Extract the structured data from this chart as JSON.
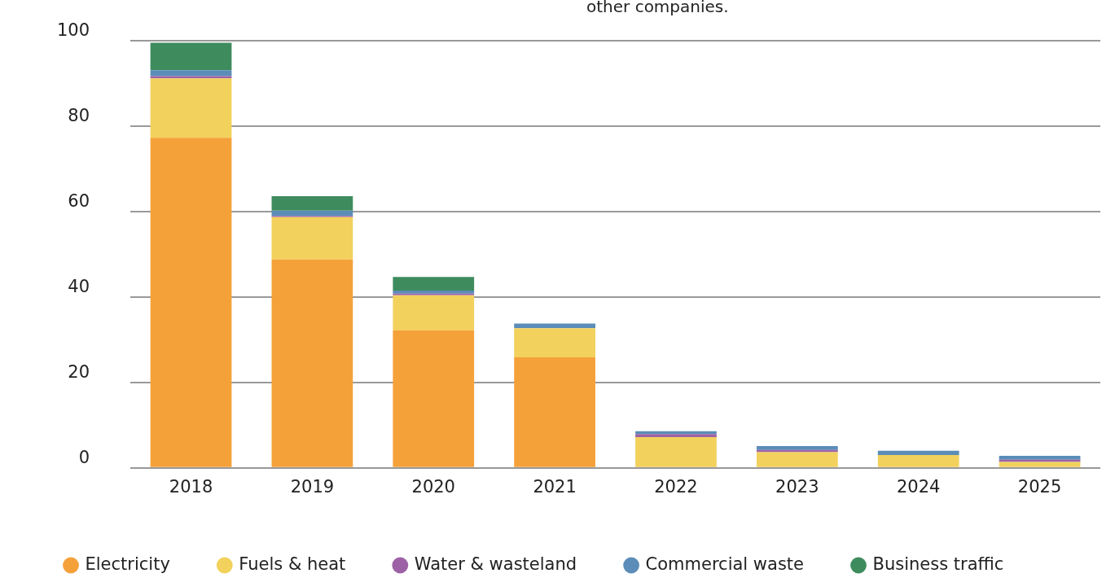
{
  "chart_data": {
    "type": "bar",
    "stacked": true,
    "categories": [
      "2018",
      "2019",
      "2020",
      "2021",
      "2022",
      "2023",
      "2024",
      "2025"
    ],
    "series": [
      {
        "name": "Electricity",
        "color": "#f5a139",
        "values": [
          77.3,
          48.8,
          32.2,
          25.9,
          0,
          0,
          0,
          0
        ]
      },
      {
        "name": "Fuels & heat",
        "color": "#f2d15c",
        "values": [
          13.9,
          9.9,
          8.2,
          6.8,
          7.2,
          3.7,
          3.0,
          1.4
        ]
      },
      {
        "name": "Water & wasteland",
        "color": "#9d62a6",
        "values": [
          0.5,
          0.3,
          0.4,
          0,
          0.7,
          0.5,
          0,
          0.5
        ]
      },
      {
        "name": "Commercial waste",
        "color": "#5b8db8",
        "values": [
          1.4,
          1.2,
          0.7,
          1.1,
          0.7,
          0.9,
          1.0,
          0.9
        ]
      },
      {
        "name": "Business traffic",
        "color": "#3e8c5e",
        "values": [
          6.4,
          3.4,
          3.2,
          0,
          0,
          0,
          0,
          0
        ]
      }
    ],
    "ylim": [
      0,
      100
    ],
    "yticks": [
      0,
      20,
      40,
      60,
      80,
      100
    ],
    "grid": "y",
    "legend": "bottom",
    "annotations": [
      "other companies."
    ]
  }
}
